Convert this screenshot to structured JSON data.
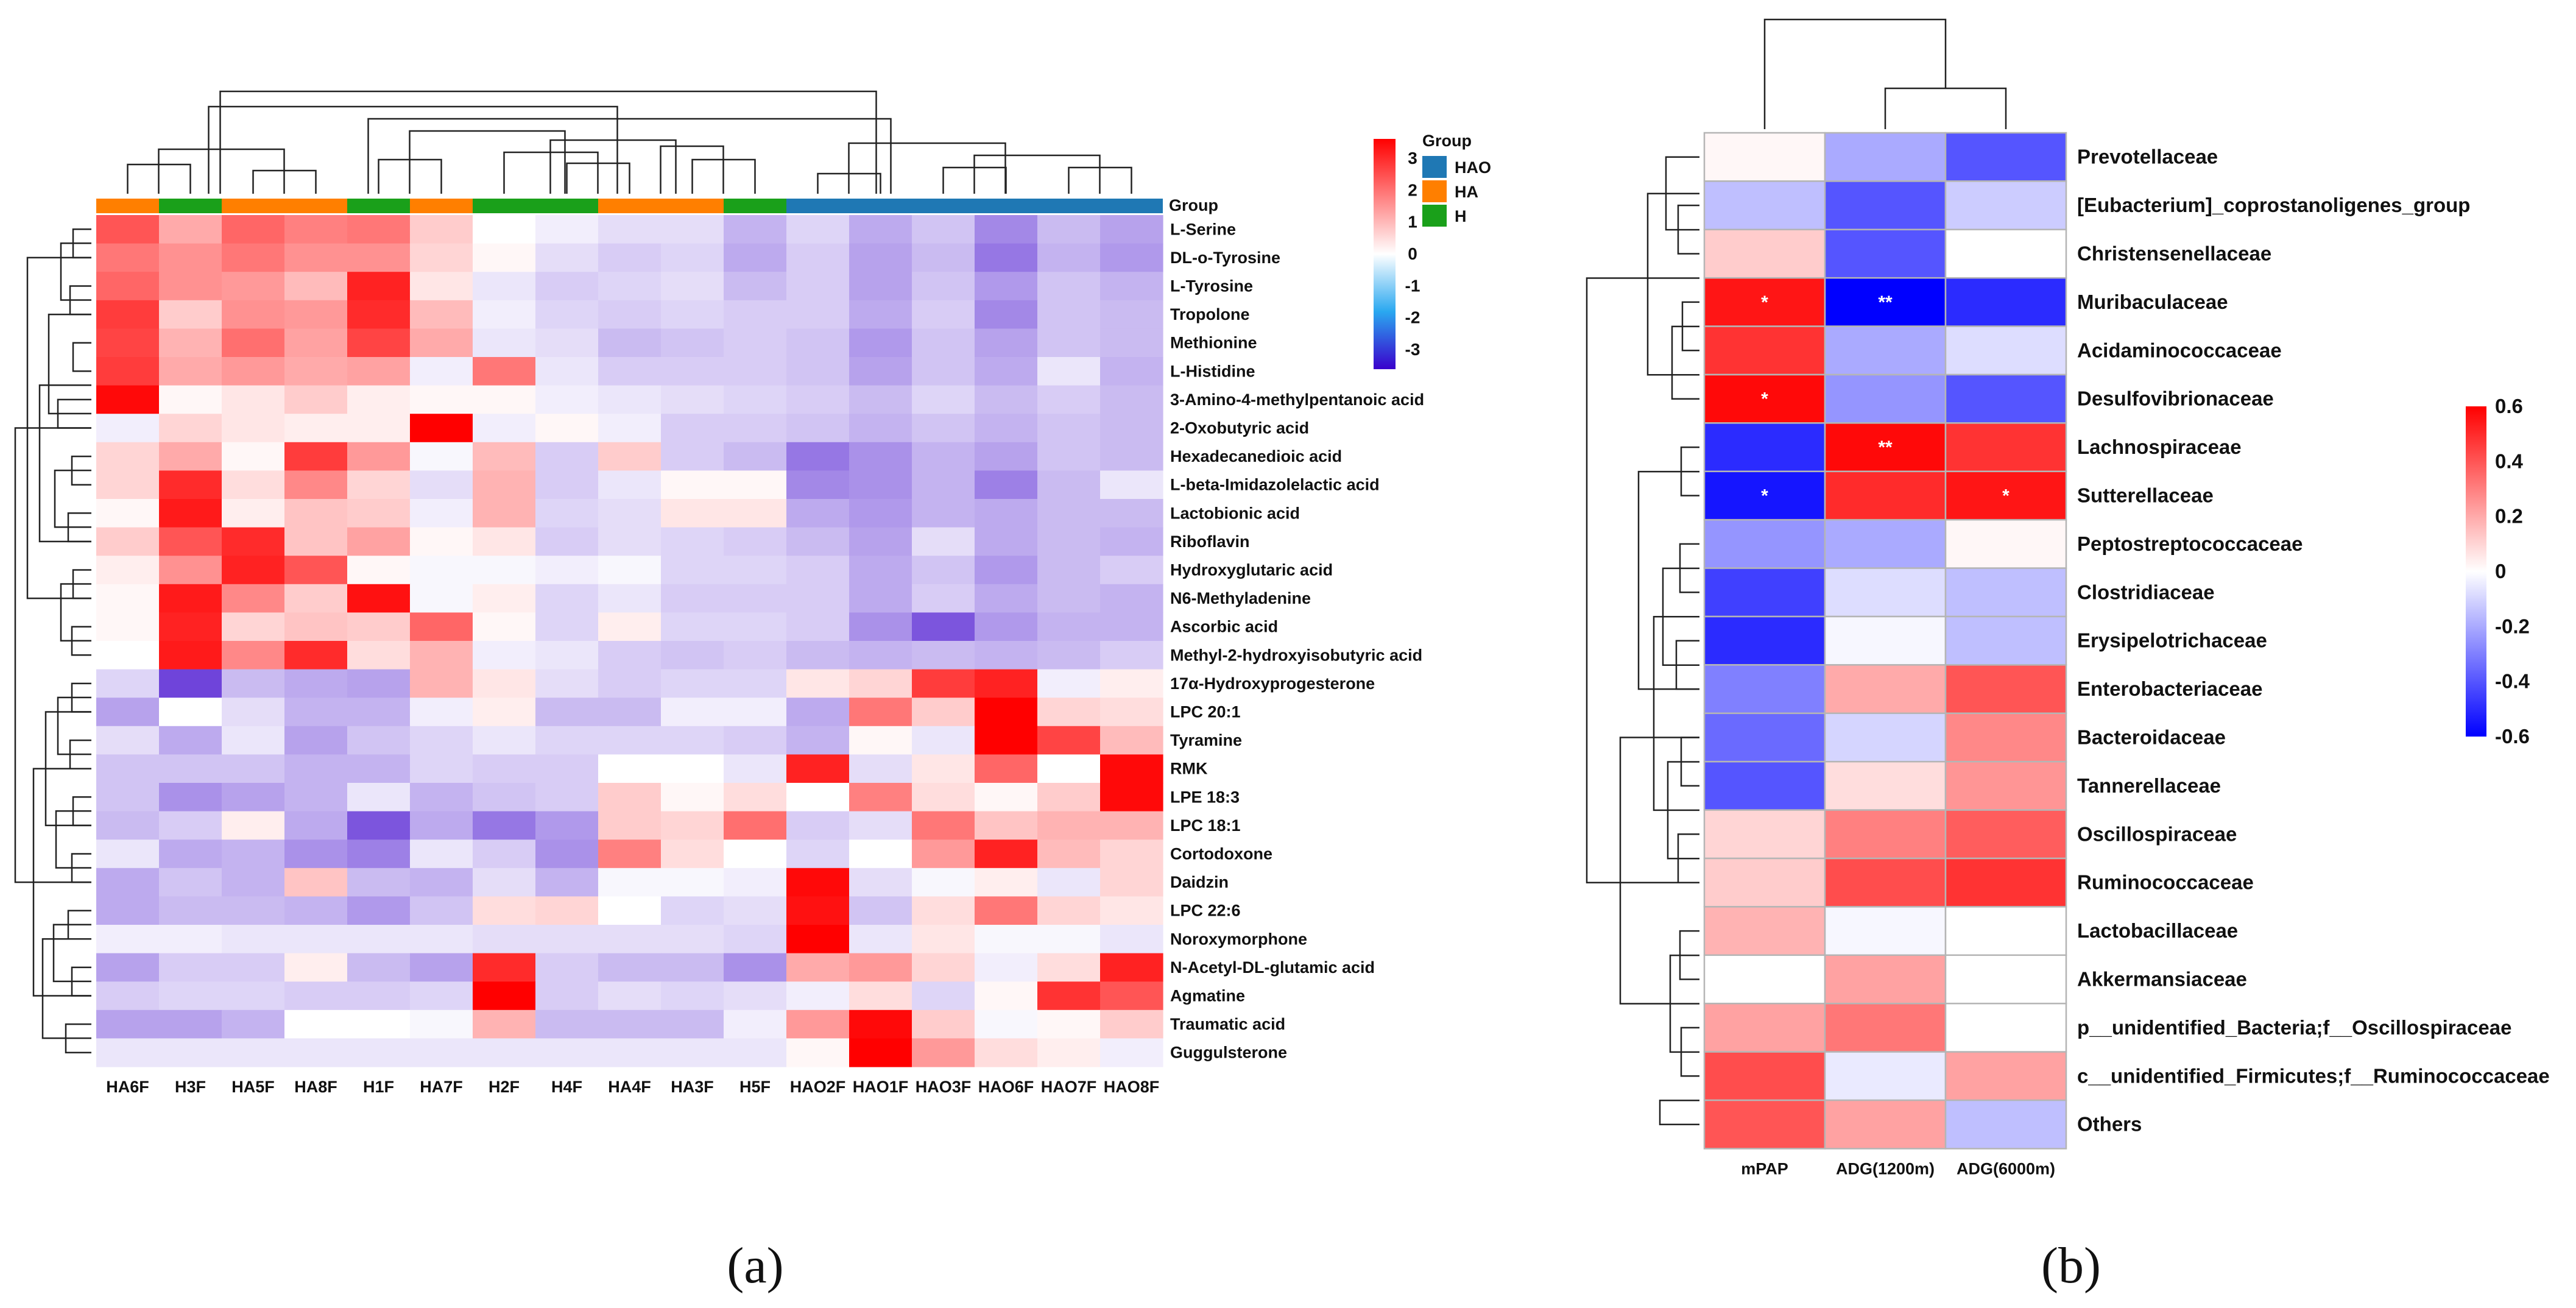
{
  "chart_data": [
    {
      "type": "heatmap",
      "panel_label": "(a)",
      "columns": [
        "HA6F",
        "H3F",
        "HA5F",
        "HA8F",
        "H1F",
        "HA7F",
        "H2F",
        "H4F",
        "HA4F",
        "HA3F",
        "H5F",
        "HAO2F",
        "HAO1F",
        "HAO3F",
        "HAO6F",
        "HAO7F",
        "HAO8F"
      ],
      "column_groups": [
        "HA",
        "H",
        "HA",
        "HA",
        "H",
        "HA",
        "H",
        "H",
        "HA",
        "HA",
        "H",
        "HAO",
        "HAO",
        "HAO",
        "HAO",
        "HAO",
        "HAO"
      ],
      "group_label": "Group",
      "group_legend": [
        {
          "name": "HAO",
          "color": "#1f78b4"
        },
        {
          "name": "HA",
          "color": "#ff7f00"
        },
        {
          "name": "H",
          "color": "#1aa01a"
        }
      ],
      "color_scale": {
        "min": -3,
        "max": 3,
        "ticks": [
          "3",
          "2",
          "1",
          "0",
          "-1",
          "-2",
          "-3"
        ],
        "high": "#ff0000",
        "mid": "#ffffff",
        "low": "#3a00cc"
      },
      "rows": [
        "L-Serine",
        "DL-o-Tyrosine",
        "L-Tyrosine",
        "Tropolone",
        "Methionine",
        "L-Histidine",
        "3-Amino-4-methylpentanoic acid",
        "2-Oxobutyric acid",
        "Hexadecanedioic acid",
        "L-beta-Imidazolelactic acid",
        "Lactobionic acid",
        "Riboflavin",
        "Hydroxyglutaric acid",
        "N6-Methyladenine",
        "Ascorbic acid",
        "Methyl-2-hydroxyisobutyric acid",
        "17α-Hydroxyprogesterone",
        "LPC 20:1",
        "Tyramine",
        "RMK",
        "LPE 18:3",
        "LPC 18:1",
        "Cortodoxone",
        "Daidzin",
        "LPC 22:6",
        "Noroxymorphone",
        "N-Acetyl-DL-glutamic acid",
        "Agmatine",
        "Traumatic acid",
        "Guggulsterone"
      ],
      "values": [
        [
          2.0,
          1.0,
          1.8,
          1.5,
          1.6,
          0.6,
          0.0,
          -0.2,
          -0.4,
          -0.4,
          -0.9,
          -0.5,
          -1.0,
          -0.7,
          -1.4,
          -0.8,
          -1.1
        ],
        [
          1.6,
          1.3,
          1.6,
          1.3,
          1.3,
          0.5,
          0.1,
          -0.4,
          -0.6,
          -0.5,
          -1.0,
          -0.6,
          -1.1,
          -0.8,
          -1.6,
          -0.9,
          -1.2
        ],
        [
          1.8,
          1.3,
          1.2,
          0.8,
          2.6,
          0.3,
          -0.3,
          -0.6,
          -0.5,
          -0.4,
          -0.8,
          -0.6,
          -1.1,
          -0.7,
          -1.2,
          -0.7,
          -0.9
        ],
        [
          2.3,
          0.6,
          1.3,
          1.2,
          2.5,
          0.8,
          -0.2,
          -0.5,
          -0.6,
          -0.5,
          -0.6,
          -0.6,
          -1.0,
          -0.6,
          -1.4,
          -0.7,
          -0.8
        ],
        [
          2.2,
          0.9,
          1.7,
          1.1,
          2.2,
          1.0,
          -0.3,
          -0.4,
          -0.8,
          -0.7,
          -0.6,
          -0.7,
          -1.2,
          -0.7,
          -1.1,
          -0.7,
          -0.8
        ],
        [
          2.3,
          1.0,
          1.2,
          1.0,
          1.1,
          -0.2,
          1.6,
          -0.3,
          -0.6,
          -0.6,
          -0.6,
          -0.7,
          -1.1,
          -0.7,
          -1.0,
          -0.3,
          -0.9
        ],
        [
          2.9,
          0.1,
          0.3,
          0.6,
          0.2,
          0.1,
          0.1,
          -0.2,
          -0.3,
          -0.4,
          -0.5,
          -0.6,
          -0.8,
          -0.5,
          -0.8,
          -0.6,
          -0.8
        ],
        [
          -0.2,
          0.5,
          0.3,
          0.2,
          0.2,
          3.0,
          -0.2,
          0.1,
          -0.2,
          -0.6,
          -0.6,
          -0.7,
          -0.9,
          -0.7,
          -0.9,
          -0.7,
          -0.8
        ],
        [
          0.5,
          1.0,
          0.1,
          2.3,
          1.2,
          -0.1,
          0.8,
          -0.6,
          0.6,
          -0.6,
          -0.8,
          -1.6,
          -1.3,
          -0.9,
          -1.1,
          -0.7,
          -0.8
        ],
        [
          0.5,
          2.5,
          0.4,
          1.4,
          0.5,
          -0.4,
          0.9,
          -0.6,
          -0.3,
          0.1,
          0.1,
          -1.4,
          -1.3,
          -0.9,
          -1.5,
          -0.8,
          -0.3
        ],
        [
          0.1,
          2.7,
          0.2,
          0.7,
          0.6,
          -0.2,
          0.9,
          -0.5,
          -0.4,
          0.3,
          0.3,
          -1.0,
          -1.2,
          -0.9,
          -1.0,
          -0.8,
          -0.8
        ],
        [
          0.6,
          2.0,
          2.5,
          0.7,
          1.1,
          0.1,
          0.3,
          -0.6,
          -0.4,
          -0.5,
          -0.6,
          -0.8,
          -1.1,
          -0.4,
          -1.0,
          -0.8,
          -0.9
        ],
        [
          0.2,
          1.3,
          2.6,
          2.0,
          0.1,
          -0.1,
          -0.1,
          -0.2,
          -0.1,
          -0.5,
          -0.5,
          -0.6,
          -1.0,
          -0.7,
          -1.2,
          -0.8,
          -0.6
        ],
        [
          0.1,
          2.7,
          1.4,
          0.6,
          2.8,
          -0.1,
          0.2,
          -0.5,
          -0.3,
          -0.6,
          -0.6,
          -0.6,
          -1.0,
          -0.6,
          -1.0,
          -0.8,
          -0.9
        ],
        [
          0.1,
          2.6,
          0.5,
          0.7,
          0.6,
          1.8,
          0.1,
          -0.5,
          0.2,
          -0.5,
          -0.5,
          -0.6,
          -1.3,
          -2.0,
          -1.2,
          -0.9,
          -0.9
        ],
        [
          0.0,
          2.7,
          1.4,
          2.5,
          0.4,
          0.9,
          -0.2,
          -0.3,
          -0.6,
          -0.7,
          -0.6,
          -0.8,
          -0.9,
          -0.8,
          -0.9,
          -0.8,
          -0.6
        ],
        [
          -0.5,
          -2.2,
          -0.8,
          -1.0,
          -1.1,
          0.9,
          0.3,
          -0.4,
          -0.6,
          -0.5,
          -0.5,
          0.3,
          0.5,
          2.3,
          2.6,
          -0.2,
          0.2
        ],
        [
          -1.1,
          0.0,
          -0.4,
          -0.9,
          -0.9,
          -0.2,
          0.2,
          -0.8,
          -0.8,
          -0.2,
          -0.2,
          -1.0,
          1.6,
          0.6,
          3.0,
          0.5,
          0.4
        ],
        [
          -0.4,
          -1.0,
          -0.3,
          -1.1,
          -0.7,
          -0.5,
          -0.3,
          -0.5,
          -0.5,
          -0.5,
          -0.6,
          -0.9,
          0.1,
          -0.3,
          3.0,
          2.2,
          0.8
        ],
        [
          -0.7,
          -0.7,
          -0.7,
          -0.9,
          -0.9,
          -0.5,
          -0.6,
          -0.6,
          0.0,
          0.0,
          -0.3,
          2.6,
          -0.4,
          0.3,
          1.8,
          0.0,
          2.9
        ],
        [
          -0.7,
          -1.3,
          -1.1,
          -0.9,
          -0.3,
          -0.9,
          -0.7,
          -0.6,
          0.6,
          0.1,
          0.4,
          0.0,
          1.5,
          0.4,
          0.1,
          0.6,
          2.9
        ],
        [
          -0.8,
          -0.6,
          0.2,
          -1.0,
          -2.0,
          -1.0,
          -1.6,
          -1.2,
          0.6,
          0.5,
          1.7,
          -0.6,
          -0.4,
          1.6,
          0.7,
          0.9,
          0.9
        ],
        [
          -0.3,
          -1.0,
          -0.9,
          -1.3,
          -1.5,
          -0.3,
          -0.6,
          -1.3,
          1.5,
          0.4,
          0.0,
          -0.5,
          0.0,
          1.2,
          2.6,
          0.8,
          0.5
        ],
        [
          -1.0,
          -0.7,
          -0.9,
          0.7,
          -0.8,
          -0.9,
          -0.4,
          -0.9,
          -0.1,
          -0.1,
          -0.2,
          2.9,
          -0.4,
          -0.1,
          0.2,
          -0.3,
          0.5
        ],
        [
          -1.0,
          -0.8,
          -0.8,
          -0.9,
          -1.2,
          -0.7,
          0.4,
          0.5,
          0.0,
          -0.5,
          -0.4,
          2.8,
          -0.7,
          0.4,
          1.6,
          0.5,
          0.3
        ],
        [
          -0.2,
          -0.2,
          -0.3,
          -0.3,
          -0.3,
          -0.3,
          -0.4,
          -0.4,
          -0.4,
          -0.4,
          -0.5,
          3.2,
          -0.3,
          0.3,
          -0.1,
          -0.1,
          -0.3
        ],
        [
          -1.1,
          -0.6,
          -0.6,
          0.2,
          -0.8,
          -1.1,
          2.5,
          -0.6,
          -0.8,
          -0.8,
          -1.3,
          1.0,
          1.2,
          0.5,
          -0.2,
          0.4,
          2.6
        ],
        [
          -0.6,
          -0.5,
          -0.5,
          -0.6,
          -0.6,
          -0.5,
          3.0,
          -0.6,
          -0.4,
          -0.5,
          -0.4,
          -0.2,
          0.4,
          -0.5,
          0.1,
          2.4,
          2.0
        ],
        [
          -1.1,
          -1.1,
          -0.9,
          0.0,
          0.0,
          -0.1,
          0.9,
          -0.8,
          -0.8,
          -0.8,
          -0.2,
          1.2,
          2.9,
          0.6,
          -0.1,
          0.1,
          0.6
        ],
        [
          -0.3,
          -0.3,
          -0.3,
          -0.3,
          -0.3,
          -0.3,
          -0.3,
          -0.3,
          -0.3,
          -0.3,
          -0.3,
          0.1,
          3.3,
          1.2,
          0.4,
          0.2,
          -0.2
        ]
      ]
    },
    {
      "type": "heatmap",
      "panel_label": "(b)",
      "columns": [
        "mPAP",
        "ADG(1200m)",
        "ADG(6000m)"
      ],
      "rows": [
        "Prevotellaceae",
        "[Eubacterium]_coprostanoligenes_group",
        "Christensenellaceae",
        "Muribaculaceae",
        "Acidaminococcaceae",
        "Desulfovibrionaceae",
        "Lachnospiraceae",
        "Sutterellaceae",
        "Peptostreptococcaceae",
        "Clostridiaceae",
        "Erysipelotrichaceae",
        "Enterobacteriaceae",
        "Bacteroidaceae",
        "Tannerellaceae",
        "Oscillospiraceae",
        "Ruminococcaceae",
        "Lactobacillaceae",
        "Akkermansiaceae",
        "p__unidentified_Bacteria;f__Oscillospiraceae",
        "c__unidentified_Firmicutes;f__Ruminococcaceae",
        "Others"
      ],
      "values": [
        [
          0.02,
          -0.2,
          -0.4
        ],
        [
          -0.15,
          -0.4,
          -0.12
        ],
        [
          0.12,
          -0.4,
          0.0
        ],
        [
          0.55,
          -0.6,
          -0.5
        ],
        [
          0.48,
          -0.2,
          -0.08
        ],
        [
          0.58,
          -0.25,
          -0.4
        ],
        [
          -0.5,
          0.58,
          0.48
        ],
        [
          -0.55,
          0.5,
          0.55
        ],
        [
          -0.25,
          -0.2,
          0.02
        ],
        [
          -0.45,
          -0.08,
          -0.15
        ],
        [
          -0.5,
          -0.02,
          -0.15
        ],
        [
          -0.3,
          0.2,
          0.4
        ],
        [
          -0.35,
          -0.1,
          0.28
        ],
        [
          -0.4,
          0.08,
          0.25
        ],
        [
          0.1,
          0.3,
          0.38
        ],
        [
          0.12,
          0.42,
          0.48
        ],
        [
          0.18,
          -0.02,
          0.0
        ],
        [
          0.0,
          0.22,
          0.0
        ],
        [
          0.22,
          0.32,
          0.0
        ],
        [
          0.42,
          -0.05,
          0.22
        ],
        [
          0.4,
          0.22,
          -0.15
        ]
      ],
      "significance": [
        [
          "",
          "",
          ""
        ],
        [
          "",
          "",
          ""
        ],
        [
          "",
          "",
          ""
        ],
        [
          "*",
          "**",
          ""
        ],
        [
          "",
          "",
          ""
        ],
        [
          "*",
          "",
          ""
        ],
        [
          "",
          "**",
          ""
        ],
        [
          "*",
          "",
          "*"
        ],
        [
          "",
          "",
          ""
        ],
        [
          "",
          "",
          ""
        ],
        [
          "",
          "",
          ""
        ],
        [
          "",
          "",
          ""
        ],
        [
          "",
          "",
          ""
        ],
        [
          "",
          "",
          ""
        ],
        [
          "",
          "",
          ""
        ],
        [
          "",
          "",
          ""
        ],
        [
          "",
          "",
          ""
        ],
        [
          "",
          "",
          ""
        ],
        [
          "",
          "",
          ""
        ],
        [
          "",
          "",
          ""
        ],
        [
          "",
          "",
          ""
        ]
      ],
      "color_scale": {
        "min": -0.6,
        "max": 0.6,
        "ticks": [
          "0.6",
          "0.4",
          "0.2",
          "0",
          "-0.2",
          "-0.4",
          "-0.6"
        ],
        "high": "#ff0000",
        "mid": "#ffffff",
        "low": "#0000ff"
      }
    }
  ]
}
